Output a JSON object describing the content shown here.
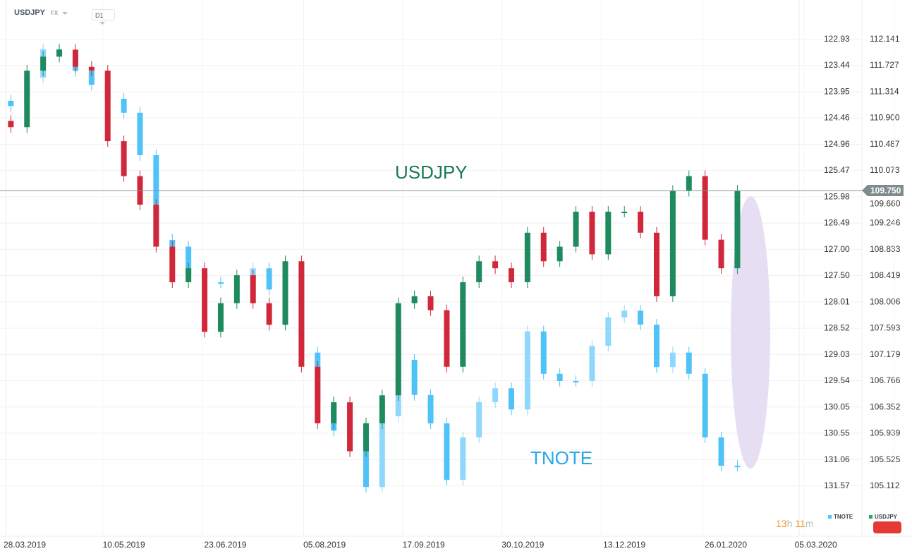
{
  "header": {
    "symbol": "USDJPY",
    "market": "FX",
    "timeframe": "D1"
  },
  "timer": {
    "hours": "13",
    "h": "h",
    "minutes": "11",
    "m": "m"
  },
  "last_price_tag": "109.750",
  "colors": {
    "usdjpy_up": "#1f8a5e",
    "usdjpy_down": "#d0283a",
    "tnote": "#4fc3f7",
    "ellipse": "#e6def3",
    "timer": "#f7941d"
  },
  "chart_data": {
    "type": "candlestick",
    "annotations": [
      "USDJPY",
      "TNOTE"
    ],
    "legend": {
      "placement": "bottom-right",
      "entries": [
        "TNOTE",
        "USDJPY"
      ]
    },
    "x_ticks": [
      "28.03.2019",
      "10.05.2019",
      "23.06.2019",
      "05.08.2019",
      "17.09.2019",
      "30.10.2019",
      "13.12.2019",
      "26.01.2020",
      "05.03.2020"
    ],
    "x_tick_dates": [
      "2019-03-28",
      "2019-05-10",
      "2019-06-23",
      "2019-08-05",
      "2019-09-17",
      "2019-10-30",
      "2019-12-13",
      "2020-01-26",
      "2020-03-05"
    ],
    "left_axis": {
      "series": "TNOTE",
      "inverted": true,
      "ticks": [
        "122.93",
        "123.44",
        "123.95",
        "124.46",
        "124.96",
        "125.47",
        "125.98",
        "126.49",
        "127.00",
        "127.50",
        "128.01",
        "128.52",
        "129.03",
        "129.54",
        "130.05",
        "130.55",
        "131.06",
        "131.57"
      ],
      "range": [
        122.93,
        131.57
      ]
    },
    "right_axis": {
      "series": "USDJPY",
      "ticks": [
        "112.141",
        "111.727",
        "111.314",
        "110.900",
        "110.487",
        "110.073",
        "109.660",
        "109.246",
        "108.833",
        "108.419",
        "108.006",
        "107.593",
        "107.179",
        "106.766",
        "106.352",
        "105.939",
        "105.525",
        "105.112"
      ],
      "range": [
        105.112,
        112.141
      ]
    },
    "dates": [
      "2019-03-22",
      "2019-03-29",
      "2019-04-05",
      "2019-04-12",
      "2019-04-19",
      "2019-04-26",
      "2019-05-03",
      "2019-05-10",
      "2019-05-17",
      "2019-05-24",
      "2019-05-31",
      "2019-06-07",
      "2019-06-14",
      "2019-06-21",
      "2019-06-28",
      "2019-07-05",
      "2019-07-12",
      "2019-07-19",
      "2019-07-26",
      "2019-08-02",
      "2019-08-09",
      "2019-08-16",
      "2019-08-23",
      "2019-08-30",
      "2019-09-06",
      "2019-09-13",
      "2019-09-20",
      "2019-09-27",
      "2019-10-04",
      "2019-10-11",
      "2019-10-18",
      "2019-10-25",
      "2019-11-01",
      "2019-11-08",
      "2019-11-15",
      "2019-11-22",
      "2019-11-29",
      "2019-12-06",
      "2019-12-13",
      "2019-12-20",
      "2019-12-27",
      "2020-01-03",
      "2020-01-10",
      "2020-01-17",
      "2020-01-24",
      "2020-01-31"
    ],
    "series": [
      {
        "name": "USDJPY",
        "axis": "right",
        "values": [
          110.75,
          111.64,
          111.86,
          111.97,
          111.7,
          111.64,
          110.53,
          109.98,
          109.53,
          108.87,
          108.31,
          108.53,
          107.53,
          107.98,
          108.42,
          107.98,
          107.64,
          108.64,
          106.98,
          106.09,
          106.42,
          105.65,
          106.09,
          106.53,
          107.98,
          108.09,
          107.87,
          106.98,
          108.31,
          108.64,
          108.53,
          108.31,
          109.09,
          108.64,
          108.87,
          109.42,
          108.75,
          109.42,
          109.42,
          109.09,
          108.09,
          109.75,
          109.98,
          108.98,
          108.53,
          109.75
        ]
      },
      {
        "name": "TNOTE",
        "axis": "left",
        "values": [
          124.23,
          123.68,
          123.13,
          123.27,
          123.55,
          123.82,
          124.09,
          124.36,
          125.18,
          126.82,
          126.95,
          127.5,
          127.64,
          127.64,
          127.64,
          127.37,
          127.78,
          127.37,
          129.0,
          129.96,
          130.51,
          130.64,
          131.6,
          130.23,
          129.14,
          129.82,
          130.37,
          131.46,
          130.64,
          129.96,
          129.69,
          130.1,
          128.59,
          129.41,
          129.55,
          129.55,
          128.87,
          128.32,
          128.19,
          128.46,
          129.28,
          129.0,
          129.41,
          130.64,
          131.19,
          131.19
        ]
      }
    ]
  }
}
